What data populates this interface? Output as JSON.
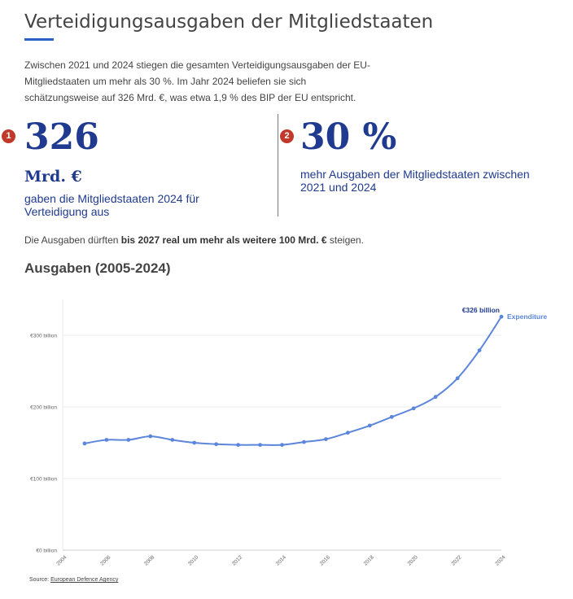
{
  "header": {
    "title": "Verteidigungsausgaben der Mitgliedstaaten",
    "intro": "Zwischen 2021 und 2024 stiegen die gesamten Verteidigungsausgaben der EU-Mitgliedstaaten um mehr als 30 %. Im Jahr 2024 beliefen sie sich schätzungsweise auf 326 Mrd. €, was etwa 1,9 % des BIP der EU entspricht."
  },
  "stats": [
    {
      "badge": "1",
      "value": "326",
      "unit": "Mrd. €",
      "description": "gaben die Mitgliedstaaten 2024 für Verteidigung aus"
    },
    {
      "badge": "2",
      "value": "30 %",
      "unit": "",
      "description": "mehr Ausgaben der Mitgliedstaaten zwischen 2021 und 2024"
    }
  ],
  "outlook": {
    "prefix": "Die Ausgaben dürften ",
    "bold": "bis 2027 real um mehr als weitere 100 Mrd. €",
    "suffix": " steigen."
  },
  "chart_title": "Ausgaben (2005-2024)",
  "source": {
    "label": "Source: ",
    "link": "European Defence Agency"
  },
  "chart_data": {
    "type": "line",
    "title": "",
    "xlabel": "",
    "ylabel": "",
    "x": [
      2005,
      2006,
      2007,
      2008,
      2009,
      2010,
      2011,
      2012,
      2013,
      2014,
      2015,
      2016,
      2017,
      2018,
      2019,
      2020,
      2021,
      2022,
      2023,
      2024
    ],
    "series": [
      {
        "name": "Expenditure",
        "values": [
          149,
          154,
          154,
          159,
          154,
          150,
          148,
          147,
          147,
          147,
          151,
          155,
          164,
          174,
          186,
          198,
          214,
          240,
          279,
          326
        ],
        "color": "#5b86db"
      }
    ],
    "end_annotation": "€326 billion",
    "xlim": [
      2004,
      2024
    ],
    "ylim": [
      0,
      350
    ],
    "x_ticks": [
      "2004",
      "2006",
      "2008",
      "2010",
      "2012",
      "2014",
      "2016",
      "2018",
      "2020",
      "2022",
      "2024"
    ],
    "y_ticks": [
      {
        "value": 0,
        "label": "€0 billion"
      },
      {
        "value": 100,
        "label": "€100 billion"
      },
      {
        "value": 200,
        "label": "€200 billion"
      },
      {
        "value": 300,
        "label": "€300 billion"
      }
    ],
    "grid": true,
    "legend": "end-of-line"
  }
}
